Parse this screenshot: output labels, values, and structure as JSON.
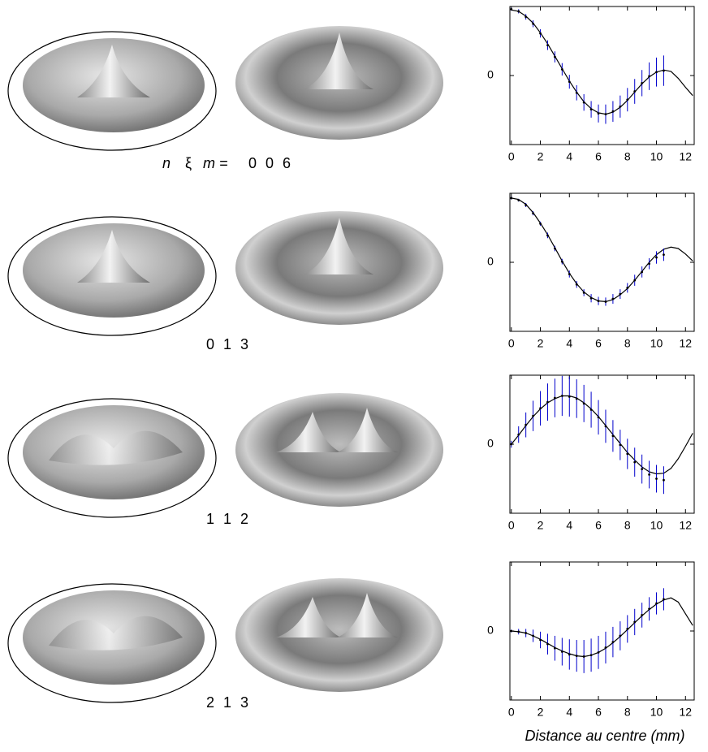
{
  "mode_symbols": [
    "n",
    "ξ",
    "m ="
  ],
  "panels": [
    {
      "mode": "0 0 6"
    },
    {
      "mode": "0 1 3"
    },
    {
      "mode": "1 1 2"
    },
    {
      "mode": "2 1 3"
    }
  ],
  "chart_data": [
    {
      "type": "line",
      "xlim": [
        -0.1,
        12.6
      ],
      "ylim": [
        -1,
        1
      ],
      "xticks": [
        0,
        2,
        4,
        6,
        8,
        10,
        12
      ],
      "yticks": [
        0
      ],
      "series": [
        {
          "color": "#000000",
          "x": [
            0,
            0.5,
            1,
            1.5,
            2,
            2.5,
            3,
            3.5,
            4,
            4.5,
            5,
            5.5,
            6,
            6.5,
            7,
            7.5,
            8,
            8.5,
            9,
            9.5,
            10,
            10.5,
            11,
            11.5,
            12,
            12.5
          ],
          "values": [
            0.95,
            0.93,
            0.86,
            0.76,
            0.62,
            0.46,
            0.28,
            0.1,
            -0.08,
            -0.24,
            -0.38,
            -0.48,
            -0.54,
            -0.56,
            -0.53,
            -0.46,
            -0.36,
            -0.24,
            -0.12,
            -0.02,
            0.05,
            0.08,
            0.06,
            -0.04,
            -0.17,
            -0.29
          ]
        },
        {
          "color": "#0000cc",
          "x": [
            0,
            0.5,
            1,
            1.5,
            2,
            2.5,
            3,
            3.5,
            4,
            4.5,
            5,
            5.5,
            6,
            6.5,
            7,
            7.5,
            8,
            8.5,
            9,
            9.5,
            10,
            10.5
          ],
          "values": [
            0.96,
            0.93,
            0.85,
            0.75,
            0.61,
            0.44,
            0.27,
            0.09,
            -0.09,
            -0.25,
            -0.39,
            -0.49,
            -0.55,
            -0.56,
            -0.52,
            -0.45,
            -0.35,
            -0.23,
            -0.11,
            -0.01,
            0.05,
            0.07
          ],
          "errors": [
            0.02,
            0.03,
            0.04,
            0.05,
            0.06,
            0.07,
            0.08,
            0.09,
            0.1,
            0.11,
            0.12,
            0.12,
            0.13,
            0.14,
            0.15,
            0.16,
            0.17,
            0.18,
            0.19,
            0.2,
            0.21,
            0.22
          ]
        }
      ]
    },
    {
      "type": "line",
      "xlim": [
        -0.1,
        12.6
      ],
      "ylim": [
        -1,
        1
      ],
      "xticks": [
        0,
        2,
        4,
        6,
        8,
        10,
        12
      ],
      "yticks": [
        0
      ],
      "series": [
        {
          "color": "#000000",
          "x": [
            0,
            0.5,
            1,
            1.5,
            2,
            2.5,
            3,
            3.5,
            4,
            4.5,
            5,
            5.5,
            6,
            6.5,
            7,
            7.5,
            8,
            8.5,
            9,
            9.5,
            10,
            10.5,
            11,
            11.5,
            12,
            12.5
          ],
          "values": [
            0.93,
            0.91,
            0.84,
            0.72,
            0.57,
            0.4,
            0.21,
            0.02,
            -0.16,
            -0.31,
            -0.43,
            -0.51,
            -0.56,
            -0.57,
            -0.54,
            -0.47,
            -0.38,
            -0.26,
            -0.13,
            0.0,
            0.11,
            0.19,
            0.22,
            0.2,
            0.12,
            0.02
          ]
        },
        {
          "color": "#0000cc",
          "x": [
            0,
            0.5,
            1,
            1.5,
            2,
            2.5,
            3,
            3.5,
            4,
            4.5,
            5,
            5.5,
            6,
            6.5,
            7,
            7.5,
            8,
            8.5,
            9,
            9.5,
            10,
            10.5
          ],
          "values": [
            0.93,
            0.9,
            0.83,
            0.71,
            0.56,
            0.39,
            0.2,
            0.01,
            -0.17,
            -0.32,
            -0.44,
            -0.52,
            -0.56,
            -0.57,
            -0.53,
            -0.46,
            -0.37,
            -0.26,
            -0.14,
            -0.02,
            0.07,
            0.11
          ],
          "errors": [
            0.02,
            0.02,
            0.03,
            0.03,
            0.03,
            0.04,
            0.04,
            0.04,
            0.05,
            0.05,
            0.05,
            0.06,
            0.06,
            0.06,
            0.07,
            0.07,
            0.07,
            0.08,
            0.08,
            0.08,
            0.09,
            0.09
          ]
        }
      ]
    },
    {
      "type": "line",
      "xlim": [
        -0.1,
        12.6
      ],
      "ylim": [
        -1,
        1
      ],
      "xticks": [
        0,
        2,
        4,
        6,
        8,
        10,
        12
      ],
      "yticks": [
        0
      ],
      "series": [
        {
          "color": "#000000",
          "x": [
            0,
            0.5,
            1,
            1.5,
            2,
            2.5,
            3,
            3.5,
            4,
            4.5,
            5,
            5.5,
            6,
            6.5,
            7,
            7.5,
            8,
            8.5,
            9,
            9.5,
            10,
            10.5,
            11,
            11.5,
            12,
            12.5
          ],
          "values": [
            0,
            0.13,
            0.27,
            0.4,
            0.51,
            0.6,
            0.66,
            0.7,
            0.7,
            0.67,
            0.6,
            0.51,
            0.4,
            0.27,
            0.14,
            0.01,
            -0.12,
            -0.23,
            -0.33,
            -0.4,
            -0.43,
            -0.42,
            -0.35,
            -0.21,
            -0.03,
            0.16
          ]
        },
        {
          "color": "#0000cc",
          "x": [
            0,
            0.5,
            1,
            1.5,
            2,
            2.5,
            3,
            3.5,
            4,
            4.5,
            5,
            5.5,
            6,
            6.5,
            7,
            7.5,
            8,
            8.5,
            9,
            9.5,
            10,
            10.5
          ],
          "values": [
            0,
            0.14,
            0.28,
            0.41,
            0.52,
            0.61,
            0.67,
            0.7,
            0.69,
            0.66,
            0.59,
            0.5,
            0.39,
            0.26,
            0.12,
            -0.01,
            -0.14,
            -0.26,
            -0.36,
            -0.44,
            -0.5,
            -0.52
          ],
          "errors": [
            0.05,
            0.12,
            0.18,
            0.22,
            0.25,
            0.27,
            0.28,
            0.29,
            0.29,
            0.28,
            0.27,
            0.26,
            0.25,
            0.24,
            0.23,
            0.22,
            0.22,
            0.21,
            0.21,
            0.2,
            0.2,
            0.2
          ]
        }
      ]
    },
    {
      "type": "line",
      "xlim": [
        -0.1,
        12.6
      ],
      "ylim": [
        -1,
        1
      ],
      "xticks": [
        0,
        2,
        4,
        6,
        8,
        10,
        12
      ],
      "yticks": [
        0
      ],
      "x_label": "Distance au centre (mm)",
      "series": [
        {
          "color": "#000000",
          "x": [
            0,
            0.5,
            1,
            1.5,
            2,
            2.5,
            3,
            3.5,
            4,
            4.5,
            5,
            5.5,
            6,
            6.5,
            7,
            7.5,
            8,
            8.5,
            9,
            9.5,
            10,
            10.5,
            11,
            11.5,
            12,
            12.5
          ],
          "values": [
            0,
            -0.01,
            -0.03,
            -0.07,
            -0.12,
            -0.18,
            -0.24,
            -0.29,
            -0.33,
            -0.36,
            -0.37,
            -0.35,
            -0.31,
            -0.25,
            -0.17,
            -0.08,
            0.02,
            0.12,
            0.22,
            0.31,
            0.39,
            0.45,
            0.48,
            0.42,
            0.25,
            0.08
          ]
        },
        {
          "color": "#0000cc",
          "x": [
            0,
            0.5,
            1,
            1.5,
            2,
            2.5,
            3,
            3.5,
            4,
            4.5,
            5,
            5.5,
            6,
            6.5,
            7,
            7.5,
            8,
            8.5,
            9,
            9.5,
            10,
            10.5
          ],
          "values": [
            0,
            -0.01,
            -0.03,
            -0.07,
            -0.13,
            -0.19,
            -0.25,
            -0.3,
            -0.34,
            -0.36,
            -0.37,
            -0.35,
            -0.31,
            -0.24,
            -0.16,
            -0.07,
            0.03,
            0.13,
            0.23,
            0.32,
            0.4,
            0.46
          ],
          "errors": [
            0.02,
            0.04,
            0.06,
            0.09,
            0.12,
            0.15,
            0.18,
            0.2,
            0.22,
            0.23,
            0.24,
            0.24,
            0.24,
            0.23,
            0.22,
            0.21,
            0.2,
            0.19,
            0.18,
            0.17,
            0.16,
            0.16
          ]
        }
      ]
    }
  ]
}
